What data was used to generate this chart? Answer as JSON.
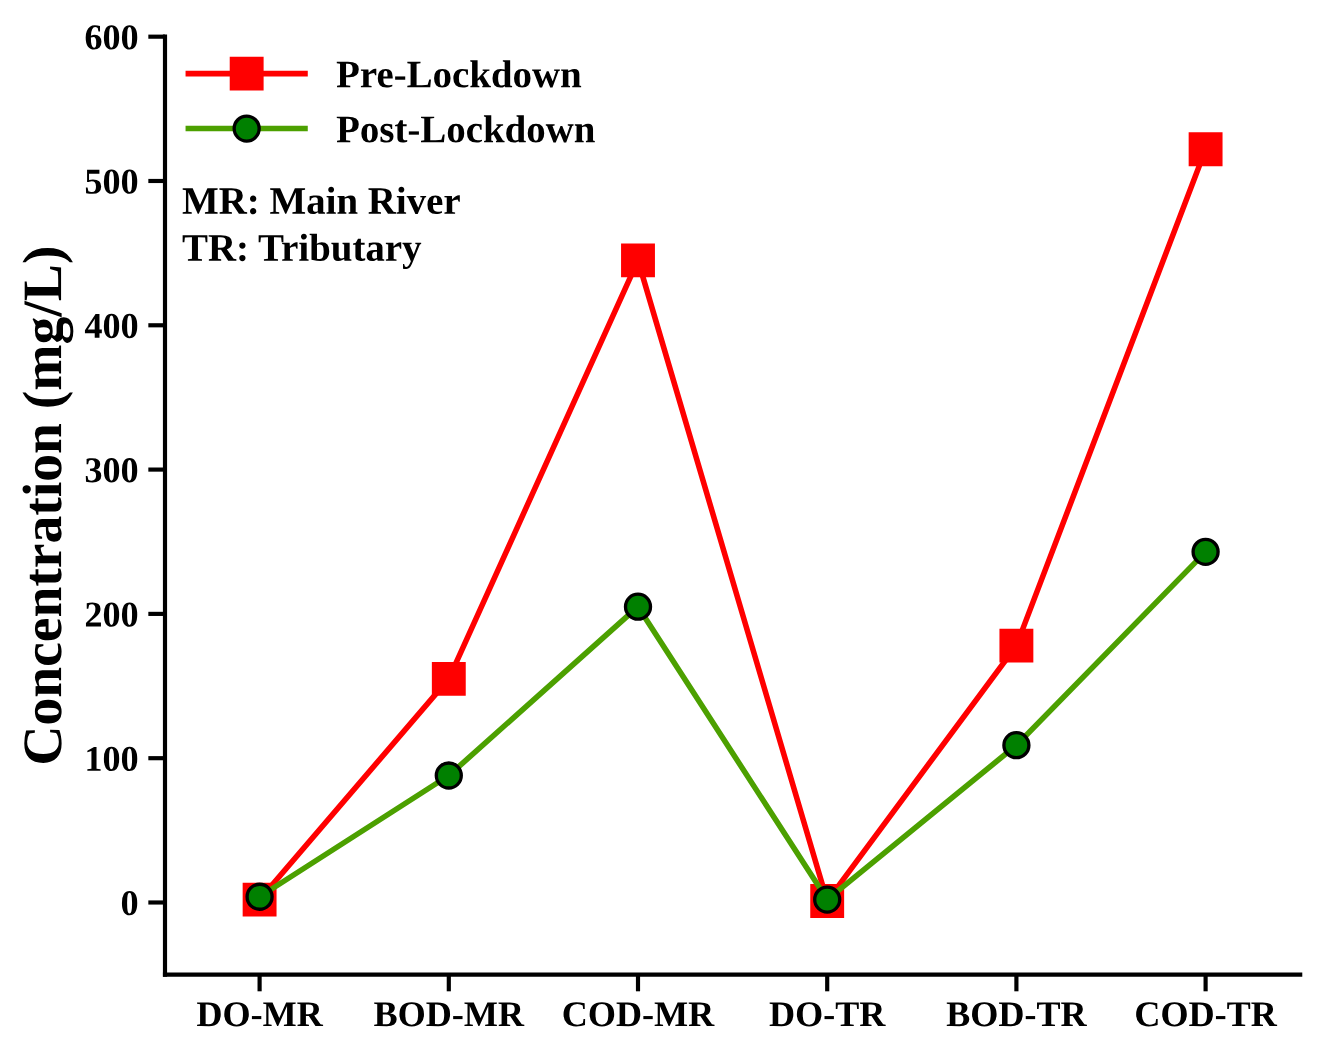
{
  "chart_data": {
    "type": "line",
    "ylabel": "Concentration (mg/L)",
    "categories": [
      "DO-MR",
      "BOD-MR",
      "COD-MR",
      "DO-TR",
      "BOD-TR",
      "COD-TR"
    ],
    "series": [
      {
        "name": "Pre-Lockdown",
        "color": "#ff0000",
        "marker": "square",
        "values": [
          2,
          155,
          445,
          1,
          178,
          522
        ]
      },
      {
        "name": "Post-Lockdown",
        "color": "#4ca000",
        "marker": "circle",
        "values": [
          4,
          88,
          205,
          2,
          109,
          243
        ]
      }
    ],
    "ylim": [
      -50,
      600
    ],
    "yticks": [
      0,
      100,
      200,
      300,
      400,
      500,
      600
    ],
    "legend": "top left",
    "grid": false,
    "line_style": "solid",
    "annotations": [
      "MR: Main River",
      "TR: Tributary"
    ]
  }
}
